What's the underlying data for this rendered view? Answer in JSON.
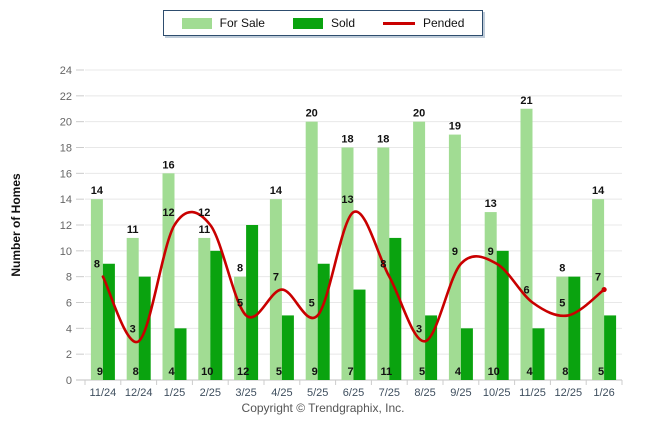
{
  "footer": "Copyright © Trendgraphix, Inc.",
  "colors": {
    "for_sale": "#A1DC93",
    "sold": "#0AA30F",
    "pended": "#C90000",
    "gridline": "#e8e8e8",
    "axis": "#c2c2c2",
    "tick": "#cccccc",
    "y_tick_text": "#666666",
    "x_tick_text": "#3e4e5e",
    "data_label": "#111111"
  },
  "chart_data": {
    "type": "bar",
    "title": "",
    "xlabel": "",
    "ylabel": "Number of Homes",
    "categories": [
      "11/24",
      "12/24",
      "1/25",
      "2/25",
      "3/25",
      "4/25",
      "5/25",
      "6/25",
      "7/25",
      "8/25",
      "9/25",
      "10/25",
      "11/25",
      "12/25",
      "1/26"
    ],
    "series": [
      {
        "name": "For Sale",
        "type": "bar",
        "color": "#A1DC93",
        "values": [
          14,
          11,
          16,
          11,
          8,
          14,
          20,
          18,
          18,
          20,
          19,
          13,
          21,
          8,
          14
        ]
      },
      {
        "name": "Sold",
        "type": "bar",
        "color": "#0AA30F",
        "values": [
          9,
          8,
          4,
          10,
          12,
          5,
          9,
          7,
          11,
          5,
          4,
          10,
          4,
          8,
          5
        ]
      },
      {
        "name": "Pended",
        "type": "line",
        "color": "#C90000",
        "values": [
          8,
          3,
          12,
          12,
          5,
          7,
          5,
          13,
          8,
          3,
          9,
          9,
          6,
          5,
          7
        ]
      }
    ],
    "ylim": [
      0,
      24
    ],
    "yticks": [
      0,
      2,
      4,
      6,
      8,
      10,
      12,
      14,
      16,
      18,
      20,
      22,
      24
    ],
    "grid": true,
    "legend_position": "top"
  }
}
